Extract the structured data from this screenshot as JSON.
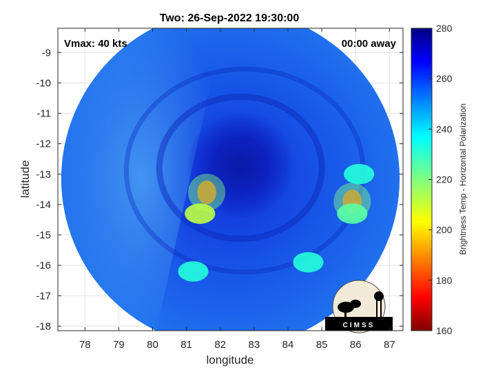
{
  "chart_data": {
    "type": "heatmap",
    "title": "Two: 26-Sep-2022 19:30:00",
    "xlabel": "longitude",
    "ylabel": "latitude",
    "xlim": [
      77.2,
      87.4
    ],
    "ylim": [
      -18.15,
      -8.2
    ],
    "x_ticks": [
      78,
      79,
      80,
      81,
      82,
      83,
      84,
      85,
      86,
      87
    ],
    "y_ticks": [
      -9,
      -10,
      -11,
      -12,
      -13,
      -14,
      -15,
      -16,
      -17,
      -18
    ],
    "grid": true,
    "annotations": {
      "top_left": "Vmax: 40 kts",
      "top_right": "00:00 away"
    },
    "colorbar": {
      "label": "Brightness Temp - Horizontal Polarization",
      "min": 160,
      "max": 280,
      "ticks": [
        280,
        260,
        240,
        220,
        200,
        180,
        160
      ],
      "colormap": "jet"
    },
    "swath": {
      "center_lon": 82.3,
      "center_lat": -13.15,
      "radius_deg": 5.0
    },
    "features": [
      {
        "name": "storm-center",
        "lon": 82.6,
        "lat": -12.7,
        "value": 268
      },
      {
        "name": "convective-core",
        "lon": 81.6,
        "lat": -13.6,
        "value": 185
      },
      {
        "name": "convection-west",
        "lon": 81.4,
        "lat": -14.3,
        "value": 212
      },
      {
        "name": "rainband-east-1",
        "lon": 85.9,
        "lat": -13.9,
        "value": 185
      },
      {
        "name": "rainband-east-2",
        "lon": 85.9,
        "lat": -14.3,
        "value": 225
      },
      {
        "name": "rainband-east-3",
        "lon": 86.1,
        "lat": -13.0,
        "value": 232
      },
      {
        "name": "rainband-south",
        "lon": 84.6,
        "lat": -15.9,
        "value": 232
      },
      {
        "name": "shower-sw",
        "lon": 81.2,
        "lat": -16.2,
        "value": 232
      }
    ]
  },
  "logo": {
    "text": "CIMSS"
  }
}
